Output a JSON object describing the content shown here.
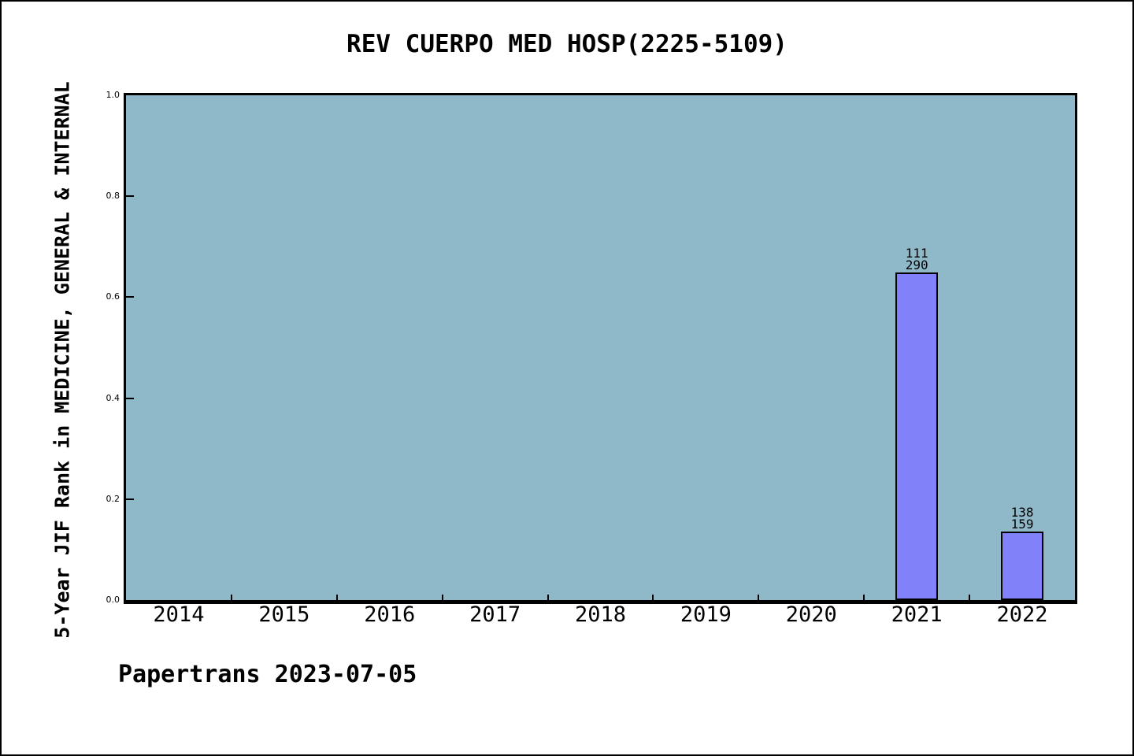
{
  "chart_data": {
    "type": "bar",
    "title": "REV CUERPO MED HOSP(2225-5109)",
    "ylabel": "5-Year JIF Rank in MEDICINE, GENERAL & INTERNAL",
    "xlabel": "",
    "footer": "Papertrans 2023-07-05",
    "categories": [
      "2014",
      "2015",
      "2016",
      "2017",
      "2018",
      "2019",
      "2020",
      "2021",
      "2022"
    ],
    "ytick_labels": [
      "0.0",
      "0.2",
      "0.4",
      "0.6",
      "0.8",
      "1.0"
    ],
    "ylim": [
      0.0,
      1.0
    ],
    "grid": "off",
    "legend": "none",
    "bars": [
      {
        "category": "2021",
        "label_line1": "111",
        "label_line2": "290",
        "rank": 111,
        "total": 290,
        "height_fraction": 0.649
      },
      {
        "category": "2022",
        "label_line1": "138",
        "label_line2": "159",
        "rank": 138,
        "total": 159,
        "height_fraction": 0.136
      }
    ],
    "colors": {
      "page_background": "#ffffff",
      "page_border": "#000000",
      "plot_background": "#8fb8c8",
      "bar_fill": "#8181fa",
      "bar_border": "#000000",
      "axis": "#000000",
      "text": "#000000"
    }
  }
}
